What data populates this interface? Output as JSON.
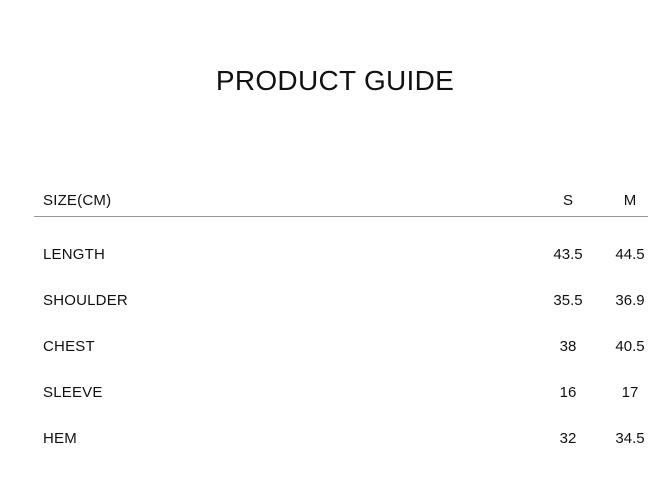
{
  "title": "PRODUCT GUIDE",
  "table": {
    "header": {
      "size_label": "SIZE(CM)",
      "columns": [
        "S",
        "M"
      ]
    },
    "rows": [
      {
        "label": "LENGTH",
        "values": [
          "43.5",
          "44.5"
        ]
      },
      {
        "label": "SHOULDER",
        "values": [
          "35.5",
          "36.9"
        ]
      },
      {
        "label": "CHEST",
        "values": [
          "38",
          "40.5"
        ]
      },
      {
        "label": "SLEEVE",
        "values": [
          "16",
          "17"
        ]
      },
      {
        "label": "HEM",
        "values": [
          "32",
          "34.5"
        ]
      }
    ],
    "divider_color": "#979797",
    "text_color": "#111111"
  }
}
